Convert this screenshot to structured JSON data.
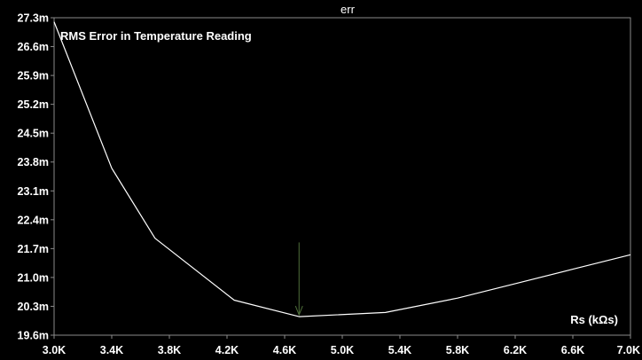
{
  "chart_data": {
    "type": "line",
    "title": "err",
    "annotation": "RMS Error in Temperature Reading",
    "xlabel": "Rs (kΩs)",
    "ylabel": "",
    "xlim": [
      3.0,
      7.0
    ],
    "ylim": [
      19.6,
      27.3
    ],
    "x_tick_labels": [
      "3.0K",
      "3.4K",
      "3.8K",
      "4.2K",
      "4.6K",
      "5.0K",
      "5.4K",
      "5.8K",
      "6.2K",
      "6.6K",
      "7.0K"
    ],
    "x_tick_values": [
      3.0,
      3.4,
      3.8,
      4.2,
      4.6,
      5.0,
      5.4,
      5.8,
      6.2,
      6.6,
      7.0
    ],
    "y_tick_labels": [
      "27.3m",
      "26.6m",
      "25.9m",
      "25.2m",
      "24.5m",
      "23.8m",
      "23.1m",
      "22.4m",
      "21.7m",
      "21.0m",
      "20.3m",
      "19.6m"
    ],
    "y_tick_values": [
      27.3,
      26.6,
      25.9,
      25.2,
      24.5,
      23.8,
      23.1,
      22.4,
      21.7,
      21.0,
      20.3,
      19.6
    ],
    "grid": false,
    "series": [
      {
        "x": [
          3.0,
          3.4,
          3.7,
          4.25,
          4.7,
          5.3,
          5.8,
          6.2,
          6.6,
          7.0
        ],
        "y": [
          27.2,
          23.65,
          21.95,
          20.45,
          20.05,
          20.15,
          20.5,
          20.85,
          21.2,
          21.55
        ],
        "color": "#ffffff"
      }
    ],
    "marker": {
      "x": 4.7,
      "y_top": 21.85,
      "y_bottom": 20.05,
      "color": "#4f6f3a"
    },
    "colors": {
      "background": "#000000",
      "axis": "#8a8a8a",
      "text": "#ffffff"
    }
  }
}
